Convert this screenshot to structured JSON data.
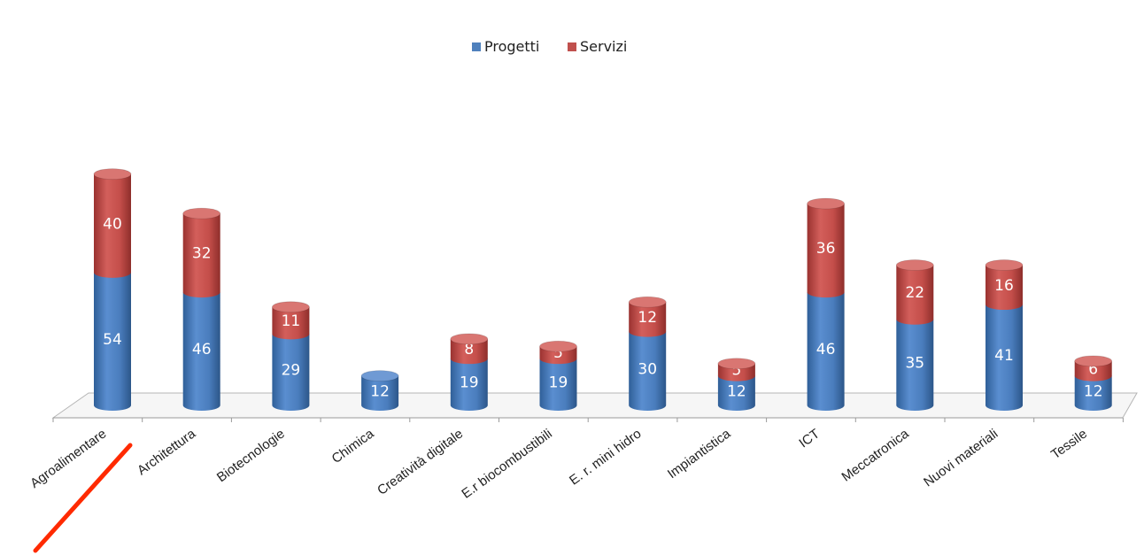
{
  "chart_data": {
    "type": "bar",
    "stacked": true,
    "style": "3d-cylinder",
    "title": "",
    "xlabel": "",
    "ylabel": "",
    "legend_position": "top-center",
    "grid": false,
    "categories": [
      "Agroalimentare",
      "Architettura",
      "Biotecnologie",
      "Chimica",
      "Creatività digitale",
      "E.r biocombustibili",
      "E. r. mini hidro",
      "Impiantistica",
      "ICT",
      "Meccatronica",
      "Nuovi materiali",
      "Tessile"
    ],
    "series": [
      {
        "name": "Progetti",
        "color": "#4f81bd",
        "values": [
          54,
          46,
          29,
          12,
          19,
          19,
          30,
          12,
          46,
          35,
          41,
          12
        ]
      },
      {
        "name": "Servizi",
        "color": "#c0504d",
        "values": [
          40,
          32,
          11,
          0,
          8,
          5,
          12,
          5,
          36,
          22,
          16,
          6
        ]
      }
    ],
    "annotations": [
      {
        "type": "highlight-line",
        "target": "Agroalimentare",
        "color": "#ff2a00"
      }
    ]
  }
}
